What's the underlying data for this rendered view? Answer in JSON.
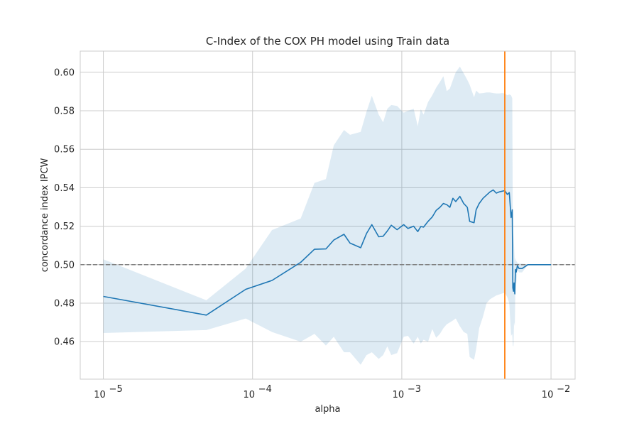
{
  "chart_data": {
    "type": "line",
    "title": "C-Index of the COX PH model using Train data",
    "xlabel": "alpha",
    "ylabel": "concordance index IPCW",
    "xscale": "log",
    "xlim": [
      7e-06,
      0.0145
    ],
    "ylim": [
      0.4405,
      0.611
    ],
    "grid": true,
    "x_ticks": [
      {
        "value": 1e-05,
        "base": "10",
        "exp": "−5"
      },
      {
        "value": 0.0001,
        "base": "10",
        "exp": "−4"
      },
      {
        "value": 0.001,
        "base": "10",
        "exp": "−3"
      },
      {
        "value": 0.01,
        "base": "10",
        "exp": "−2"
      }
    ],
    "y_ticks": [
      {
        "value": 0.46,
        "label": "0.46"
      },
      {
        "value": 0.48,
        "label": "0.48"
      },
      {
        "value": 0.5,
        "label": "0.50"
      },
      {
        "value": 0.52,
        "label": "0.52"
      },
      {
        "value": 0.54,
        "label": "0.54"
      },
      {
        "value": 0.56,
        "label": "0.56"
      },
      {
        "value": 0.58,
        "label": "0.58"
      },
      {
        "value": 0.6,
        "label": "0.60"
      }
    ],
    "colors": {
      "mean_line": "#1f77b4",
      "band": "#1f77b4",
      "reference": "#808080",
      "best_alpha": "#ff7f0e",
      "grid": "#cccccc"
    },
    "reference_line_y": 0.5,
    "best_alpha_x": 0.0049,
    "series": [
      {
        "x": [
          1e-05,
          4.9e-05,
          9e-05,
          0.000135,
          0.00021,
          0.00026,
          0.00031,
          0.00035,
          0.00041,
          0.00045,
          0.00053,
          0.00058,
          0.00063,
          0.0007,
          0.00075,
          0.0008,
          0.00085,
          0.00093,
          0.00103,
          0.0011,
          0.0012,
          0.00128,
          0.00134,
          0.0014,
          0.0015,
          0.0016,
          0.0017,
          0.0018,
          0.0019,
          0.002,
          0.0021,
          0.0022,
          0.0023,
          0.00245,
          0.0026,
          0.00275,
          0.00285,
          0.00305,
          0.00315,
          0.0033,
          0.0035,
          0.0037,
          0.0039,
          0.0041,
          0.0043,
          0.0045,
          0.0047,
          0.0049,
          0.0051,
          0.00525,
          0.0054,
          0.0055,
          0.00555,
          0.0056,
          0.00565,
          0.00572,
          0.00578,
          0.00585,
          0.00595,
          0.0061,
          0.0064,
          0.007,
          0.01
        ],
        "mean": [
          0.4835,
          0.4738,
          0.4872,
          0.4918,
          0.5012,
          0.508,
          0.5082,
          0.5128,
          0.5158,
          0.5112,
          0.5088,
          0.5162,
          0.5208,
          0.5145,
          0.5148,
          0.5175,
          0.5205,
          0.5182,
          0.5208,
          0.5188,
          0.52,
          0.5172,
          0.5198,
          0.5195,
          0.5225,
          0.5248,
          0.5282,
          0.5298,
          0.5318,
          0.5312,
          0.5298,
          0.5345,
          0.5328,
          0.5355,
          0.5318,
          0.5298,
          0.5225,
          0.5218,
          0.5285,
          0.5318,
          0.5345,
          0.5362,
          0.5378,
          0.5388,
          0.5372,
          0.5378,
          0.5382,
          0.5385,
          0.5365,
          0.5375,
          0.5245,
          0.5285,
          0.488,
          0.4862,
          0.4905,
          0.4848,
          0.4975,
          0.4962,
          0.4995,
          0.498,
          0.498,
          0.5,
          0.5
        ],
        "upper": [
          0.5028,
          0.4815,
          0.498,
          0.518,
          0.524,
          0.5425,
          0.5445,
          0.562,
          0.57,
          0.5675,
          0.569,
          0.5795,
          0.5878,
          0.578,
          0.574,
          0.581,
          0.583,
          0.5825,
          0.579,
          0.58,
          0.581,
          0.572,
          0.5808,
          0.578,
          0.5845,
          0.588,
          0.592,
          0.595,
          0.598,
          0.5902,
          0.5915,
          0.596,
          0.6,
          0.603,
          0.5995,
          0.596,
          0.5935,
          0.587,
          0.5905,
          0.589,
          0.5892,
          0.5895,
          0.5895,
          0.5892,
          0.589,
          0.589,
          0.5892,
          0.589,
          0.588,
          0.5885,
          0.588,
          0.5865,
          0.52,
          0.515,
          0.51,
          0.501,
          0.5035,
          0.502,
          0.501,
          0.5005,
          0.5005,
          0.5002,
          0.5002
        ],
        "lower": [
          0.4645,
          0.466,
          0.472,
          0.465,
          0.46,
          0.464,
          0.458,
          0.4625,
          0.4545,
          0.4545,
          0.448,
          0.453,
          0.4545,
          0.451,
          0.453,
          0.4575,
          0.453,
          0.454,
          0.4625,
          0.463,
          0.459,
          0.4625,
          0.459,
          0.461,
          0.46,
          0.4665,
          0.462,
          0.464,
          0.467,
          0.469,
          0.47,
          0.471,
          0.472,
          0.468,
          0.465,
          0.464,
          0.452,
          0.4505,
          0.456,
          0.467,
          0.473,
          0.48,
          0.482,
          0.483,
          0.484,
          0.4845,
          0.485,
          0.4855,
          0.483,
          0.48,
          0.463,
          0.464,
          0.458,
          0.4575,
          0.47,
          0.468,
          0.492,
          0.49,
          0.4975,
          0.496,
          0.496,
          0.4998,
          0.4998
        ]
      }
    ]
  }
}
